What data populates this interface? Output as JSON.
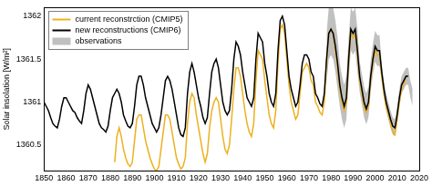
{
  "chart_data": {
    "type": "line",
    "y_label": "Solar insolation [W/m²]",
    "x": [
      1850,
      1851,
      1852,
      1853,
      1854,
      1855,
      1856,
      1857,
      1858,
      1859,
      1860,
      1861,
      1862,
      1863,
      1864,
      1865,
      1866,
      1867,
      1868,
      1869,
      1870,
      1871,
      1872,
      1873,
      1874,
      1875,
      1876,
      1877,
      1878,
      1879,
      1880,
      1881,
      1882,
      1883,
      1884,
      1885,
      1886,
      1887,
      1888,
      1889,
      1890,
      1891,
      1892,
      1893,
      1894,
      1895,
      1896,
      1897,
      1898,
      1899,
      1900,
      1901,
      1902,
      1903,
      1904,
      1905,
      1906,
      1907,
      1908,
      1909,
      1910,
      1911,
      1912,
      1913,
      1914,
      1915,
      1916,
      1917,
      1918,
      1919,
      1920,
      1921,
      1922,
      1923,
      1924,
      1925,
      1926,
      1927,
      1928,
      1929,
      1930,
      1931,
      1932,
      1933,
      1934,
      1935,
      1936,
      1937,
      1938,
      1939,
      1940,
      1941,
      1942,
      1943,
      1944,
      1945,
      1946,
      1947,
      1948,
      1949,
      1950,
      1951,
      1952,
      1953,
      1954,
      1955,
      1956,
      1957,
      1958,
      1959,
      1960,
      1961,
      1962,
      1963,
      1964,
      1965,
      1966,
      1967,
      1968,
      1969,
      1970,
      1971,
      1972,
      1973,
      1974,
      1975,
      1976,
      1977,
      1978,
      1979,
      1980,
      1981,
      1982,
      1983,
      1984,
      1985,
      1986,
      1987,
      1988,
      1989,
      1990,
      1991,
      1992,
      1993,
      1994,
      1995,
      1996,
      1997,
      1998,
      1999,
      2000,
      2001,
      2002,
      2003,
      2004,
      2005,
      2006,
      2007,
      2008,
      2009,
      2010,
      2011,
      2012,
      2013,
      2014,
      2015,
      2016,
      2017
    ],
    "xlim": [
      1850,
      2020
    ],
    "xticks": [
      1850,
      1860,
      1870,
      1880,
      1890,
      1900,
      1910,
      1920,
      1930,
      1940,
      1950,
      1960,
      1970,
      1980,
      1990,
      2000,
      2010,
      2020
    ],
    "ylim": [
      1360.2,
      1362.1
    ],
    "yticks": [
      1360.5,
      1361,
      1361.5,
      1362
    ],
    "grid": false,
    "legend": "upper left",
    "series": [
      {
        "name": "current reconstrction (CMIP5)",
        "color": "#edb120",
        "values": [
          null,
          null,
          null,
          null,
          null,
          null,
          null,
          null,
          null,
          null,
          null,
          null,
          null,
          null,
          null,
          null,
          null,
          null,
          null,
          null,
          null,
          null,
          null,
          null,
          null,
          null,
          null,
          null,
          null,
          null,
          null,
          null,
          1360.3,
          1360.6,
          1360.7,
          1360.6,
          1360.45,
          1360.35,
          1360.28,
          1360.25,
          1360.3,
          1360.55,
          1360.8,
          1360.85,
          1360.85,
          1360.7,
          1360.55,
          1360.45,
          1360.35,
          1360.28,
          1360.22,
          1360.2,
          1360.25,
          1360.45,
          1360.65,
          1360.85,
          1360.85,
          1360.8,
          1360.65,
          1360.5,
          1360.35,
          1360.28,
          1360.22,
          1360.25,
          1360.35,
          1360.75,
          1361.0,
          1361.1,
          1361.05,
          1360.85,
          1360.7,
          1360.55,
          1360.4,
          1360.3,
          1360.4,
          1360.7,
          1360.9,
          1361.0,
          1361.05,
          1361.0,
          1360.8,
          1360.6,
          1360.45,
          1360.4,
          1360.5,
          1360.8,
          1361.15,
          1361.4,
          1361.4,
          1361.3,
          1361.1,
          1360.9,
          1360.75,
          1360.65,
          1360.6,
          1360.75,
          1361.25,
          1361.6,
          1361.55,
          1361.5,
          1361.25,
          1361.05,
          1360.85,
          1360.75,
          1360.7,
          1360.9,
          1361.45,
          1361.85,
          1361.9,
          1361.8,
          1361.5,
          1361.2,
          1361.0,
          1360.9,
          1360.8,
          1360.85,
          1361.1,
          1361.35,
          1361.4,
          1361.45,
          1361.4,
          1361.25,
          1361.2,
          1361.0,
          1360.95,
          1360.88,
          1360.85,
          1361.0,
          1361.45,
          1361.8,
          1361.85,
          1361.8,
          1361.6,
          1361.4,
          1361.15,
          1361.0,
          1360.9,
          1361.0,
          1361.45,
          1361.8,
          1361.75,
          1361.8,
          1361.55,
          1361.25,
          1361.1,
          1360.95,
          1360.88,
          1360.95,
          1361.25,
          1361.45,
          1361.6,
          1361.55,
          1361.55,
          1361.3,
          1361.1,
          1360.95,
          1360.85,
          1360.75,
          1360.65,
          1360.62,
          1360.8,
          1361.0,
          1361.15,
          1361.2,
          1361.3,
          null,
          null,
          null
        ]
      },
      {
        "name": "new reconstructions (CMIP6)",
        "color": "#000000",
        "values": [
          1361.0,
          1360.95,
          1360.9,
          1360.82,
          1360.75,
          1360.72,
          1360.7,
          1360.8,
          1360.95,
          1361.05,
          1361.05,
          1361.0,
          1360.95,
          1360.9,
          1360.88,
          1360.82,
          1360.78,
          1360.75,
          1360.9,
          1361.1,
          1361.2,
          1361.15,
          1361.05,
          1360.95,
          1360.85,
          1360.75,
          1360.7,
          1360.68,
          1360.65,
          1360.72,
          1360.9,
          1361.05,
          1361.1,
          1361.15,
          1361.1,
          1361.0,
          1360.85,
          1360.78,
          1360.72,
          1360.7,
          1360.75,
          1360.95,
          1361.2,
          1361.3,
          1361.3,
          1361.2,
          1361.05,
          1360.95,
          1360.85,
          1360.75,
          1360.7,
          1360.65,
          1360.7,
          1360.85,
          1361.05,
          1361.25,
          1361.3,
          1361.25,
          1361.15,
          1361.0,
          1360.85,
          1360.7,
          1360.62,
          1360.6,
          1360.7,
          1361.1,
          1361.35,
          1361.45,
          1361.35,
          1361.2,
          1361.05,
          1360.95,
          1360.82,
          1360.75,
          1360.82,
          1361.1,
          1361.35,
          1361.45,
          1361.5,
          1361.4,
          1361.2,
          1361.0,
          1360.9,
          1360.85,
          1360.9,
          1361.15,
          1361.5,
          1361.7,
          1361.65,
          1361.55,
          1361.35,
          1361.2,
          1361.05,
          1361.0,
          1360.95,
          1361.05,
          1361.5,
          1361.8,
          1361.75,
          1361.7,
          1361.45,
          1361.3,
          1361.1,
          1361.0,
          1360.95,
          1361.1,
          1361.6,
          1361.95,
          1362.0,
          1361.9,
          1361.6,
          1361.3,
          1361.15,
          1361.05,
          1360.95,
          1361.0,
          1361.2,
          1361.45,
          1361.55,
          1361.55,
          1361.5,
          1361.35,
          1361.3,
          1361.1,
          1361.05,
          1360.98,
          1360.95,
          1361.1,
          1361.5,
          1361.8,
          1361.85,
          1361.8,
          1361.65,
          1361.45,
          1361.2,
          1361.05,
          1360.95,
          1361.05,
          1361.5,
          1361.85,
          1361.8,
          1361.85,
          1361.6,
          1361.3,
          1361.15,
          1361.0,
          1360.92,
          1361.0,
          1361.3,
          1361.5,
          1361.65,
          1361.6,
          1361.6,
          1361.35,
          1361.15,
          1361.0,
          1360.9,
          1360.8,
          1360.72,
          1360.7,
          1360.85,
          1361.05,
          1361.2,
          1361.25,
          1361.3,
          1361.3,
          null,
          null
        ]
      },
      {
        "name": "observations",
        "color": "#c0c0c0",
        "type": "band",
        "lower": [
          null,
          null,
          null,
          null,
          null,
          null,
          null,
          null,
          null,
          null,
          null,
          null,
          null,
          null,
          null,
          null,
          null,
          null,
          null,
          null,
          null,
          null,
          null,
          null,
          null,
          null,
          null,
          null,
          null,
          null,
          null,
          null,
          null,
          null,
          null,
          null,
          null,
          null,
          null,
          null,
          null,
          null,
          null,
          null,
          null,
          null,
          null,
          null,
          null,
          null,
          null,
          null,
          null,
          null,
          null,
          null,
          null,
          null,
          null,
          null,
          null,
          null,
          null,
          null,
          null,
          null,
          null,
          null,
          null,
          null,
          null,
          null,
          null,
          null,
          null,
          null,
          null,
          null,
          null,
          null,
          null,
          null,
          null,
          null,
          null,
          null,
          null,
          null,
          null,
          null,
          null,
          null,
          null,
          null,
          null,
          null,
          null,
          null,
          null,
          null,
          null,
          null,
          null,
          null,
          null,
          null,
          null,
          null,
          null,
          null,
          null,
          null,
          null,
          null,
          null,
          null,
          null,
          null,
          null,
          null,
          null,
          null,
          null,
          null,
          null,
          null,
          null,
          null,
          1361.2,
          1361.5,
          1361.55,
          1361.5,
          1361.35,
          1361.15,
          1360.95,
          1360.8,
          1360.7,
          1360.8,
          1361.25,
          1361.6,
          1361.55,
          1361.6,
          1361.35,
          1361.12,
          1360.97,
          1360.82,
          1360.74,
          1360.82,
          1361.12,
          1361.32,
          1361.47,
          1361.42,
          1361.42,
          1361.25,
          1361.05,
          1360.9,
          1360.8,
          1360.7,
          1360.62,
          1360.6,
          1360.75,
          1360.95,
          1361.1,
          1361.15,
          1361.2,
          1361.2,
          1361.05,
          1360.95
        ],
        "upper": [
          null,
          null,
          null,
          null,
          null,
          null,
          null,
          null,
          null,
          null,
          null,
          null,
          null,
          null,
          null,
          null,
          null,
          null,
          null,
          null,
          null,
          null,
          null,
          null,
          null,
          null,
          null,
          null,
          null,
          null,
          null,
          null,
          null,
          null,
          null,
          null,
          null,
          null,
          null,
          null,
          null,
          null,
          null,
          null,
          null,
          null,
          null,
          null,
          null,
          null,
          null,
          null,
          null,
          null,
          null,
          null,
          null,
          null,
          null,
          null,
          null,
          null,
          null,
          null,
          null,
          null,
          null,
          null,
          null,
          null,
          null,
          null,
          null,
          null,
          null,
          null,
          null,
          null,
          null,
          null,
          null,
          null,
          null,
          null,
          null,
          null,
          null,
          null,
          null,
          null,
          null,
          null,
          null,
          null,
          null,
          null,
          null,
          null,
          null,
          null,
          null,
          null,
          null,
          null,
          null,
          null,
          null,
          null,
          null,
          null,
          null,
          null,
          null,
          null,
          null,
          null,
          null,
          null,
          null,
          null,
          null,
          null,
          null,
          null,
          null,
          null,
          null,
          null,
          1361.8,
          1362.1,
          1362.1,
          1362.1,
          1361.95,
          1361.75,
          1361.45,
          1361.3,
          1361.2,
          1361.3,
          1361.75,
          1362.1,
          1362.05,
          1362.1,
          1361.85,
          1361.48,
          1361.33,
          1361.18,
          1361.1,
          1361.18,
          1361.48,
          1361.68,
          1361.83,
          1361.78,
          1361.78,
          1361.45,
          1361.25,
          1361.1,
          1361.0,
          1360.9,
          1360.82,
          1360.8,
          1360.95,
          1361.15,
          1361.3,
          1361.35,
          1361.4,
          1361.4,
          1361.25,
          1361.15
        ]
      }
    ]
  }
}
